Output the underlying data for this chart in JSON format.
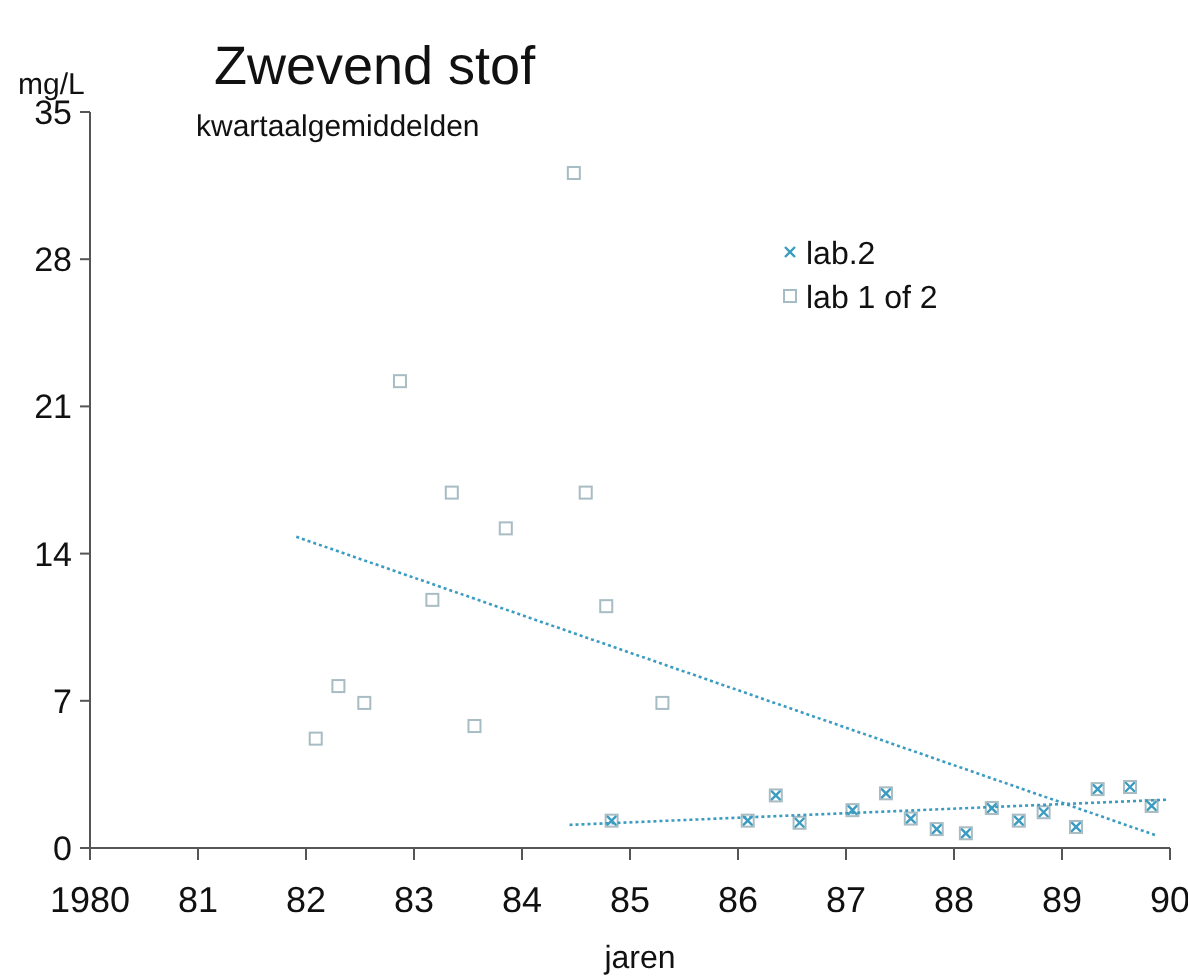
{
  "chart_data": {
    "type": "scatter",
    "title": "Zwevend stof",
    "subtitle": "kwartaalgemiddelden",
    "ylabel": "mg/L",
    "xlabel": "jaren",
    "xlim": [
      1980,
      1990
    ],
    "xticks": [
      {
        "value": 1980,
        "label": "1980"
      },
      {
        "value": 1981,
        "label": "81"
      },
      {
        "value": 1982,
        "label": "82"
      },
      {
        "value": 1983,
        "label": "83"
      },
      {
        "value": 1984,
        "label": "84"
      },
      {
        "value": 1985,
        "label": "85"
      },
      {
        "value": 1986,
        "label": "86"
      },
      {
        "value": 1987,
        "label": "87"
      },
      {
        "value": 1988,
        "label": "88"
      },
      {
        "value": 1989,
        "label": "89"
      },
      {
        "value": 1990,
        "label": "90"
      }
    ],
    "ylim": [
      0,
      35
    ],
    "yticks": [
      0,
      7,
      14,
      21,
      28,
      35
    ],
    "grid": false,
    "legend": "top right",
    "series": [
      {
        "name": "lab.2",
        "color": "#3a9cc0",
        "marker": "cross",
        "x": [
          1984.83,
          1986.09,
          1986.35,
          1986.57,
          1987.06,
          1987.37,
          1987.6,
          1987.84,
          1988.11,
          1988.35,
          1988.6,
          1988.83,
          1989.13,
          1989.33,
          1989.63,
          1989.83
        ],
        "values": [
          1.3,
          1.3,
          2.5,
          1.2,
          1.8,
          2.6,
          1.4,
          0.9,
          0.7,
          1.9,
          1.3,
          1.7,
          1.0,
          2.8,
          2.9,
          2.0
        ]
      },
      {
        "name": "lab 1 of 2",
        "color": "#a8bcc4",
        "marker": "square",
        "x": [
          1984.48,
          1982.87,
          1983.35,
          1984.59,
          1983.85,
          1983.17,
          1984.78,
          1982.3,
          1982.54,
          1983.56,
          1982.09,
          1985.3,
          1984.83,
          1986.09,
          1986.35,
          1986.57,
          1987.06,
          1987.37,
          1987.6,
          1987.84,
          1988.11,
          1988.35,
          1988.6,
          1988.83,
          1989.13,
          1989.33,
          1989.63,
          1989.83
        ],
        "values": [
          32.1,
          22.2,
          16.9,
          16.9,
          15.2,
          11.8,
          11.5,
          7.7,
          6.9,
          5.8,
          5.2,
          6.9,
          1.3,
          1.3,
          2.5,
          1.2,
          1.8,
          2.6,
          1.4,
          0.9,
          0.7,
          1.9,
          1.3,
          1.7,
          1.0,
          2.8,
          2.9,
          2.0
        ]
      },
      {
        "type": "line",
        "color": "#3a9cc0",
        "line_style": "dotted",
        "x": [
          1981.91,
          1989.87
        ],
        "values": [
          14.8,
          0.6
        ]
      },
      {
        "type": "line",
        "color": "#3a9cc0",
        "line_style": "dotted",
        "x": [
          1984.44,
          1989.98
        ],
        "values": [
          1.1,
          2.3
        ]
      }
    ]
  }
}
